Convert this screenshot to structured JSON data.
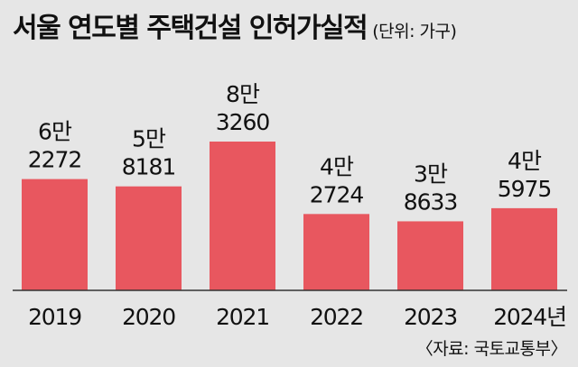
{
  "title": "서울 연도별 주택건설 인허가실적",
  "unit_note": "(단위: 가구)",
  "source": "〈자료: 국토교통부〉",
  "colors": {
    "bar": "#e8575f",
    "background": "#e6e6e6",
    "baseline": "#333333",
    "text": "#111111"
  },
  "chart_data": {
    "type": "bar",
    "title": "서울 연도별 주택건설 인허가실적",
    "xlabel": "",
    "ylabel": "",
    "unit": "가구",
    "categories": [
      "2019",
      "2020",
      "2021",
      "2022",
      "2023",
      "2024년"
    ],
    "values": [
      62272,
      58181,
      83260,
      42724,
      38633,
      45975
    ],
    "data_labels": [
      [
        "6만",
        "2272"
      ],
      [
        "5만",
        "8181"
      ],
      [
        "8만",
        "3260"
      ],
      [
        "4만",
        "2724"
      ],
      [
        "3만",
        "8633"
      ],
      [
        "4만",
        "5975"
      ]
    ],
    "grid": false,
    "legend": "none"
  }
}
